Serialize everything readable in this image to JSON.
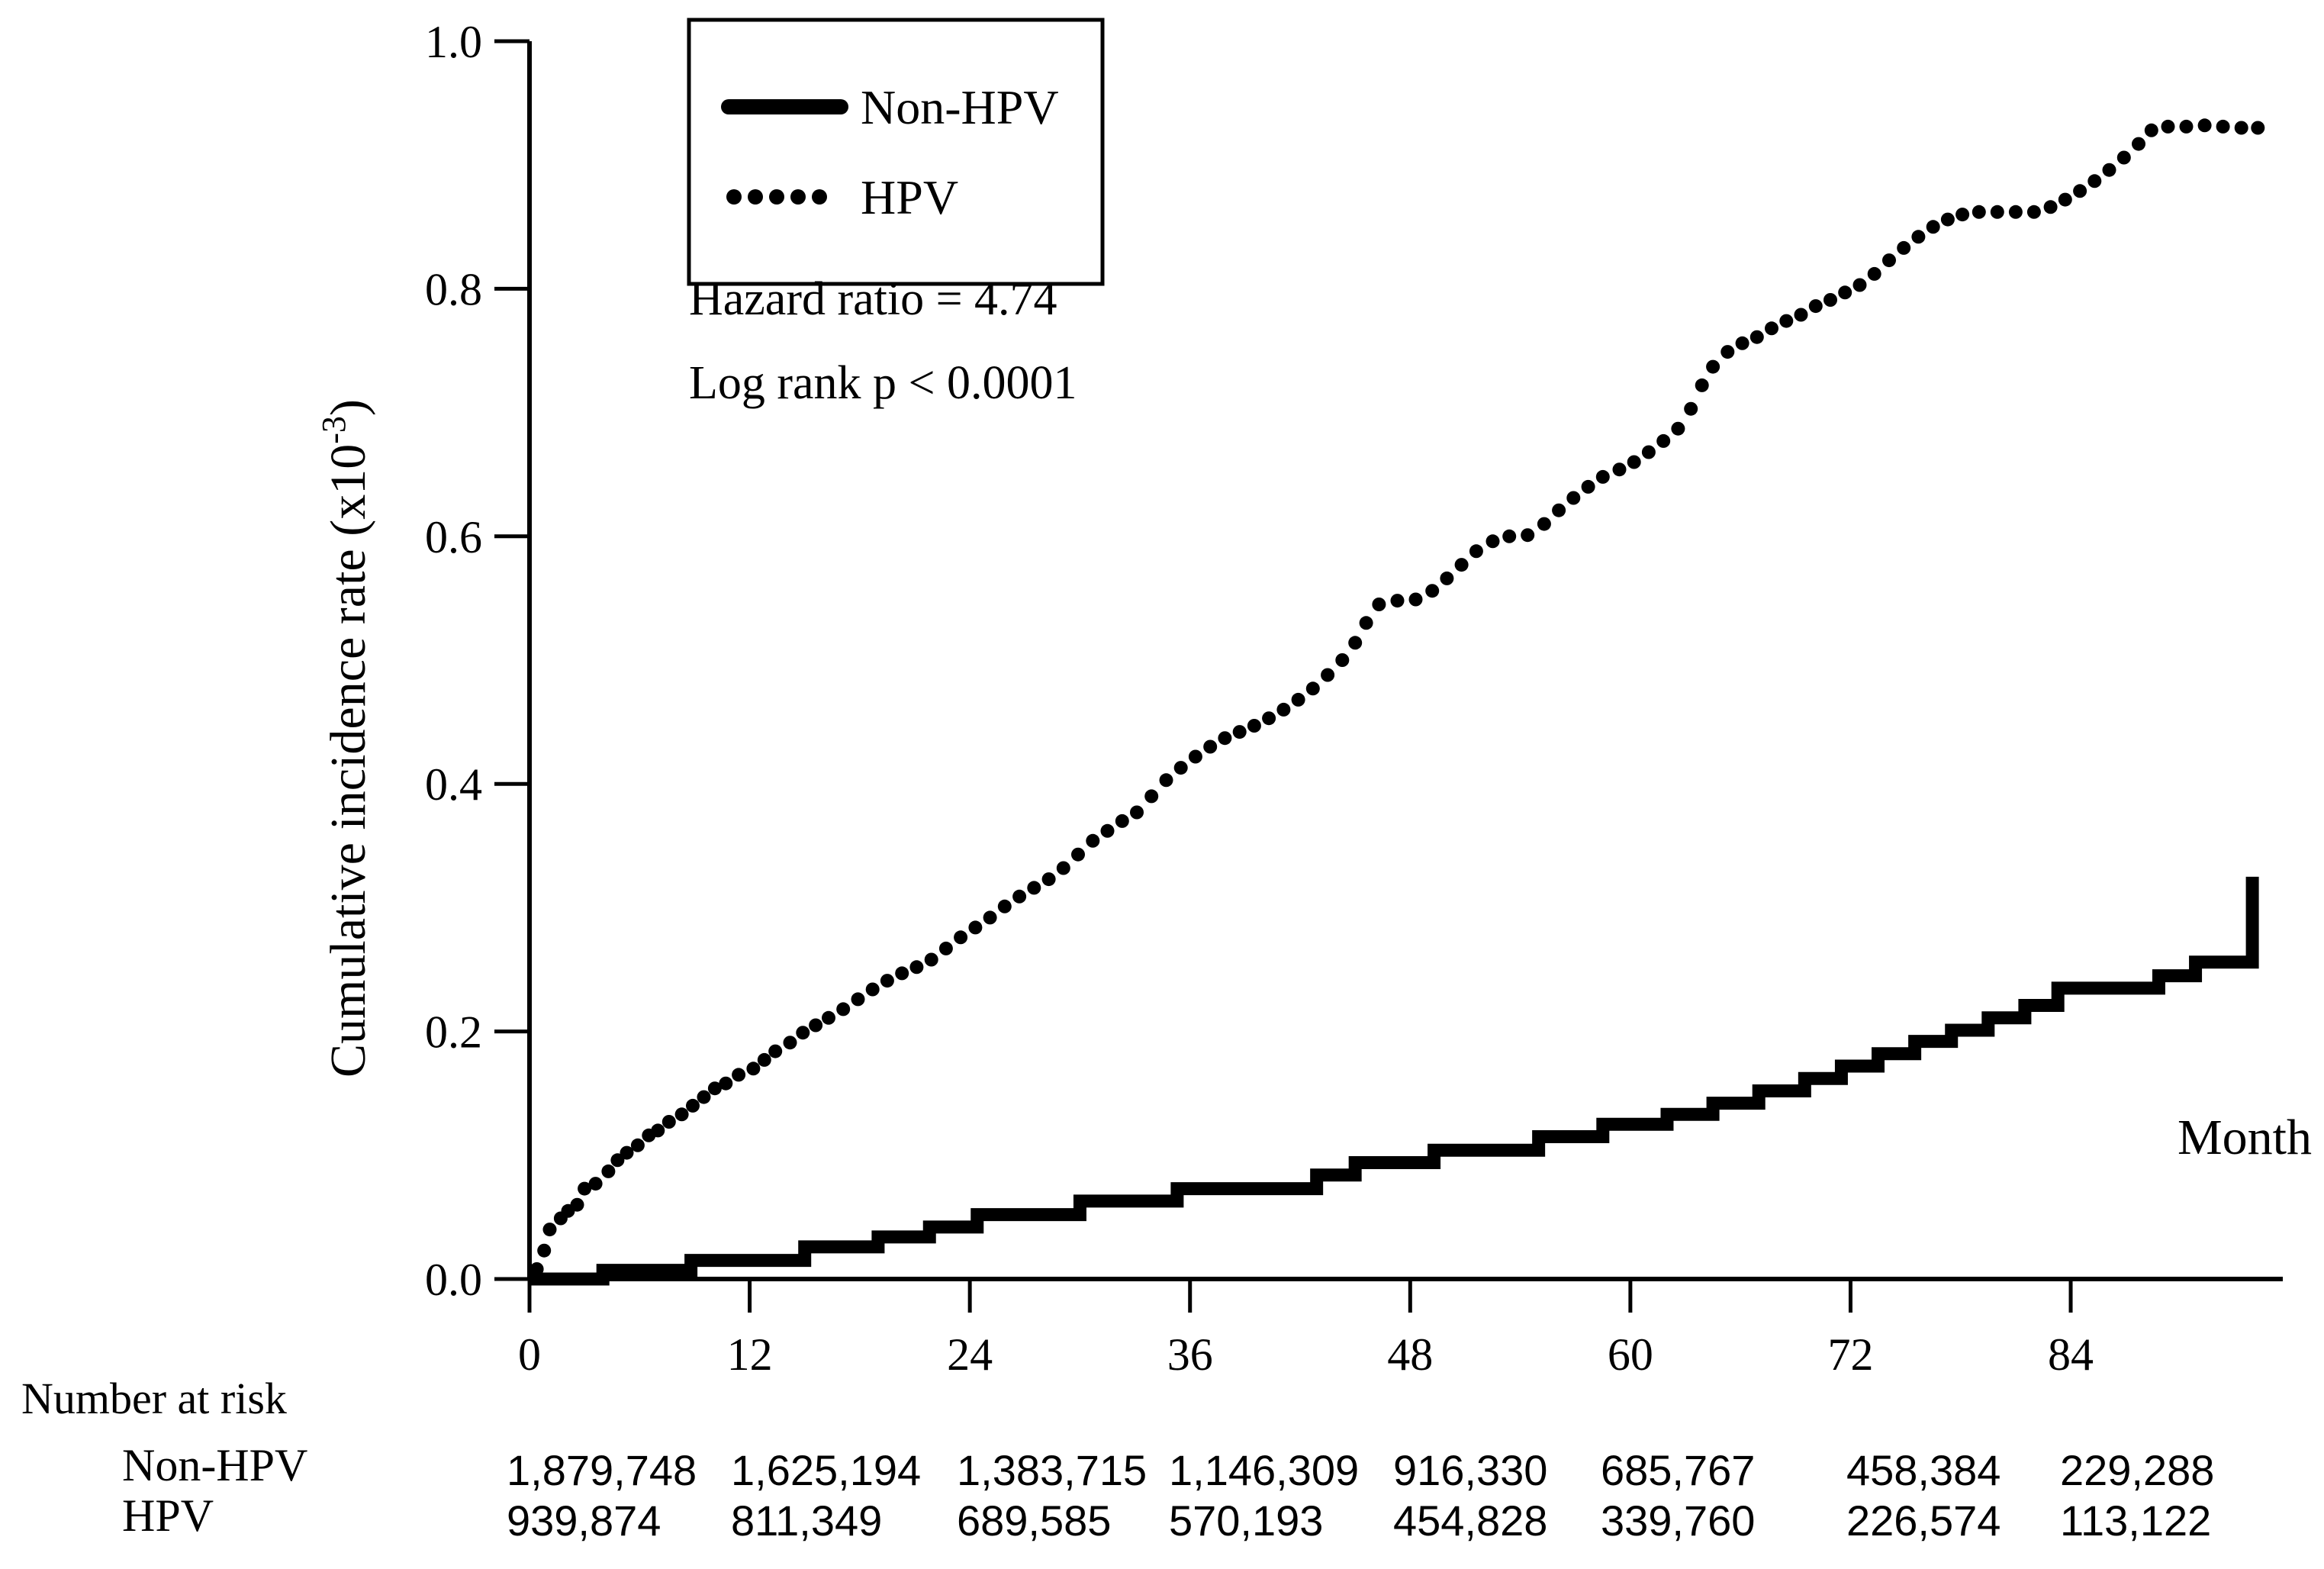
{
  "chart_data": {
    "type": "line",
    "title": "",
    "xlabel": "Month",
    "ylabel": "Cumulative incidence rate (x10-3)",
    "ylabel_parts": {
      "base": "Cumulative incidence rate (x10",
      "sup": "-3",
      "close": ")"
    },
    "xlim": [
      0,
      95.5
    ],
    "ylim": [
      0.0,
      1.0
    ],
    "x_ticks": [
      0,
      12,
      24,
      36,
      48,
      60,
      72,
      84
    ],
    "y_ticks": [
      0.0,
      0.2,
      0.4,
      0.6,
      0.8,
      1.0
    ],
    "grid": false,
    "legend_position": "top-left-inside",
    "annotations": [
      "Hazard ratio = 4.74",
      "Log rank p < 0.0001"
    ],
    "legend": [
      {
        "name": "Non-HPV",
        "style": "solid",
        "color": "#000000"
      },
      {
        "name": "HPV",
        "style": "dotted",
        "color": "#000000"
      }
    ],
    "series": [
      {
        "name": "Non-HPV",
        "type": "step",
        "color": "#000000",
        "steps": [
          [
            0,
            0.0
          ],
          [
            4.0,
            0.007
          ],
          [
            8.8,
            0.015
          ],
          [
            15.0,
            0.026
          ],
          [
            19.0,
            0.034
          ],
          [
            21.8,
            0.042
          ],
          [
            24.4,
            0.052
          ],
          [
            30.0,
            0.063
          ],
          [
            35.3,
            0.073
          ],
          [
            42.9,
            0.084
          ],
          [
            45.0,
            0.094
          ],
          [
            49.3,
            0.104
          ],
          [
            55.0,
            0.115
          ],
          [
            58.5,
            0.125
          ],
          [
            62.0,
            0.133
          ],
          [
            64.5,
            0.142
          ],
          [
            67.0,
            0.152
          ],
          [
            69.5,
            0.162
          ],
          [
            71.5,
            0.172
          ],
          [
            73.5,
            0.182
          ],
          [
            75.5,
            0.192
          ],
          [
            77.5,
            0.201
          ],
          [
            79.5,
            0.211
          ],
          [
            81.5,
            0.221
          ],
          [
            83.3,
            0.235
          ],
          [
            88.8,
            0.245
          ],
          [
            90.8,
            0.256
          ]
        ],
        "final_jump": [
          93.9,
          0.325
        ]
      },
      {
        "name": "HPV",
        "type": "dots",
        "color": "#000000",
        "points": [
          [
            0.4,
            0.008
          ],
          [
            0.8,
            0.023
          ],
          [
            1.1,
            0.04
          ],
          [
            1.7,
            0.049
          ],
          [
            2.1,
            0.055
          ],
          [
            2.6,
            0.06
          ],
          [
            3.0,
            0.073
          ],
          [
            3.6,
            0.077
          ],
          [
            4.3,
            0.087
          ],
          [
            4.8,
            0.096
          ],
          [
            5.3,
            0.102
          ],
          [
            5.9,
            0.108
          ],
          [
            6.5,
            0.116
          ],
          [
            7.0,
            0.12
          ],
          [
            7.6,
            0.127
          ],
          [
            8.3,
            0.133
          ],
          [
            8.9,
            0.14
          ],
          [
            9.5,
            0.147
          ],
          [
            10.1,
            0.154
          ],
          [
            10.7,
            0.158
          ],
          [
            11.4,
            0.165
          ],
          [
            12.2,
            0.17
          ],
          [
            12.8,
            0.177
          ],
          [
            13.4,
            0.184
          ],
          [
            14.2,
            0.191
          ],
          [
            14.9,
            0.199
          ],
          [
            15.6,
            0.205
          ],
          [
            16.3,
            0.211
          ],
          [
            17.1,
            0.218
          ],
          [
            17.9,
            0.226
          ],
          [
            18.7,
            0.234
          ],
          [
            19.5,
            0.241
          ],
          [
            20.3,
            0.247
          ],
          [
            21.1,
            0.252
          ],
          [
            21.9,
            0.258
          ],
          [
            22.7,
            0.267
          ],
          [
            23.5,
            0.276
          ],
          [
            24.3,
            0.284
          ],
          [
            25.1,
            0.292
          ],
          [
            25.9,
            0.301
          ],
          [
            26.7,
            0.309
          ],
          [
            27.5,
            0.316
          ],
          [
            28.3,
            0.323
          ],
          [
            29.1,
            0.332
          ],
          [
            29.9,
            0.343
          ],
          [
            30.7,
            0.354
          ],
          [
            31.5,
            0.362
          ],
          [
            32.3,
            0.37
          ],
          [
            33.1,
            0.377
          ],
          [
            33.9,
            0.39
          ],
          [
            34.7,
            0.403
          ],
          [
            35.5,
            0.413
          ],
          [
            36.3,
            0.422
          ],
          [
            37.1,
            0.43
          ],
          [
            37.9,
            0.437
          ],
          [
            38.7,
            0.442
          ],
          [
            39.5,
            0.447
          ],
          [
            40.3,
            0.453
          ],
          [
            41.1,
            0.46
          ],
          [
            41.9,
            0.468
          ],
          [
            42.7,
            0.477
          ],
          [
            43.5,
            0.488
          ],
          [
            44.3,
            0.5
          ],
          [
            45.0,
            0.514
          ],
          [
            45.6,
            0.53
          ],
          [
            46.3,
            0.545
          ],
          [
            47.3,
            0.548
          ],
          [
            48.3,
            0.549
          ],
          [
            49.2,
            0.556
          ],
          [
            50.0,
            0.566
          ],
          [
            50.8,
            0.577
          ],
          [
            51.6,
            0.588
          ],
          [
            52.5,
            0.596
          ],
          [
            53.4,
            0.6
          ],
          [
            54.4,
            0.601
          ],
          [
            55.3,
            0.61
          ],
          [
            56.1,
            0.621
          ],
          [
            56.9,
            0.631
          ],
          [
            57.7,
            0.64
          ],
          [
            58.5,
            0.648
          ],
          [
            59.4,
            0.654
          ],
          [
            60.2,
            0.66
          ],
          [
            61.0,
            0.668
          ],
          [
            61.8,
            0.677
          ],
          [
            62.6,
            0.687
          ],
          [
            63.3,
            0.703
          ],
          [
            63.9,
            0.722
          ],
          [
            64.5,
            0.737
          ],
          [
            65.3,
            0.749
          ],
          [
            66.1,
            0.756
          ],
          [
            66.9,
            0.761
          ],
          [
            67.7,
            0.768
          ],
          [
            68.5,
            0.774
          ],
          [
            69.3,
            0.779
          ],
          [
            70.1,
            0.786
          ],
          [
            70.9,
            0.791
          ],
          [
            71.7,
            0.797
          ],
          [
            72.5,
            0.803
          ],
          [
            73.3,
            0.812
          ],
          [
            74.1,
            0.823
          ],
          [
            74.9,
            0.833
          ],
          [
            75.7,
            0.842
          ],
          [
            76.5,
            0.85
          ],
          [
            77.3,
            0.856
          ],
          [
            78.1,
            0.86
          ],
          [
            79.0,
            0.862
          ],
          [
            80.0,
            0.862
          ],
          [
            81.0,
            0.862
          ],
          [
            82.0,
            0.862
          ],
          [
            82.9,
            0.866
          ],
          [
            83.7,
            0.872
          ],
          [
            84.5,
            0.879
          ],
          [
            85.3,
            0.887
          ],
          [
            86.1,
            0.896
          ],
          [
            86.9,
            0.906
          ],
          [
            87.7,
            0.917
          ],
          [
            88.4,
            0.928
          ],
          [
            89.3,
            0.931
          ],
          [
            90.3,
            0.931
          ],
          [
            91.3,
            0.932
          ],
          [
            92.3,
            0.931
          ],
          [
            93.3,
            0.93
          ],
          [
            94.2,
            0.93
          ]
        ]
      }
    ],
    "number_at_risk": {
      "label": "Number at risk",
      "columns_months": [
        0,
        12,
        24,
        36,
        48,
        60,
        72,
        84
      ],
      "rows": [
        {
          "label": "Non-HPV",
          "values": [
            "1,879,748",
            "1,625,194",
            "1,383,715",
            "1,146,309",
            "916,330",
            "685,767",
            "458,384",
            "229,288"
          ]
        },
        {
          "label": "HPV",
          "values": [
            "939,874",
            "811,349",
            "689,585",
            "570,193",
            "454,828",
            "339,760",
            "226,574",
            "113,122"
          ]
        }
      ]
    }
  }
}
